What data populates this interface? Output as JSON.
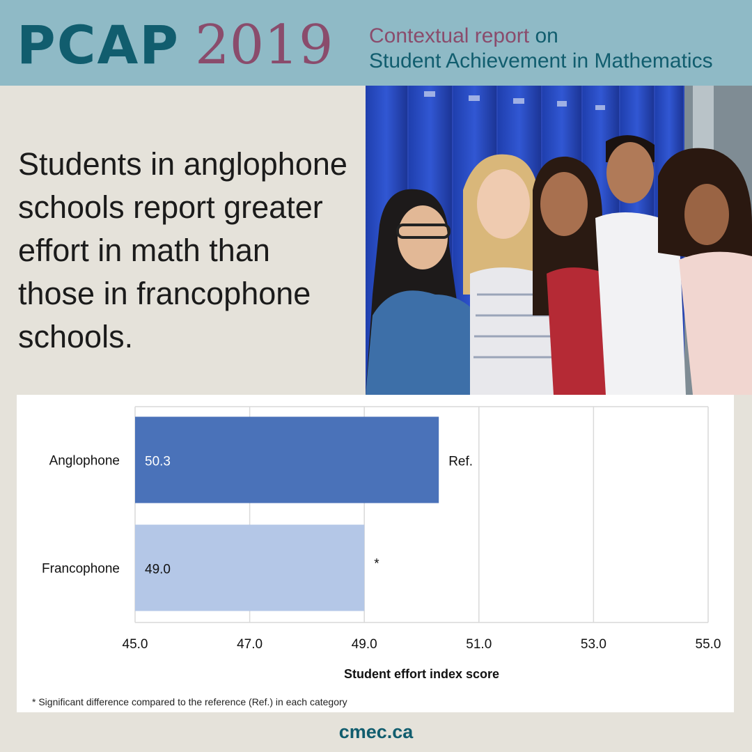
{
  "banner": {
    "logo_main": "PCAP",
    "logo_year": "2019",
    "subtitle_part1": "Contextual report",
    "subtitle_part2": " on",
    "subtitle_line2": "Student Achievement in Mathematics"
  },
  "headline": "Students in anglophone schools report greater effort in math than those in francophone schools.",
  "chart_data": {
    "type": "bar",
    "orientation": "horizontal",
    "categories": [
      "Anglophone",
      "Francophone"
    ],
    "values": [
      50.3,
      49.0
    ],
    "value_labels": [
      "50.3",
      "49.0"
    ],
    "significance_labels": [
      "Ref.",
      "*"
    ],
    "xlabel": "Student effort index score",
    "xlim": [
      45.0,
      55.0
    ],
    "xticks": [
      "45.0",
      "47.0",
      "49.0",
      "51.0",
      "53.0",
      "55.0"
    ],
    "grid": true,
    "colors": [
      "#4a72b9",
      "#b4c7e7"
    ],
    "footnote": "* Significant difference compared to the reference (Ref.) in each category"
  },
  "footer": {
    "site": "cmec.ca"
  },
  "photo_label": "Group of smiling students standing in front of blue lockers"
}
